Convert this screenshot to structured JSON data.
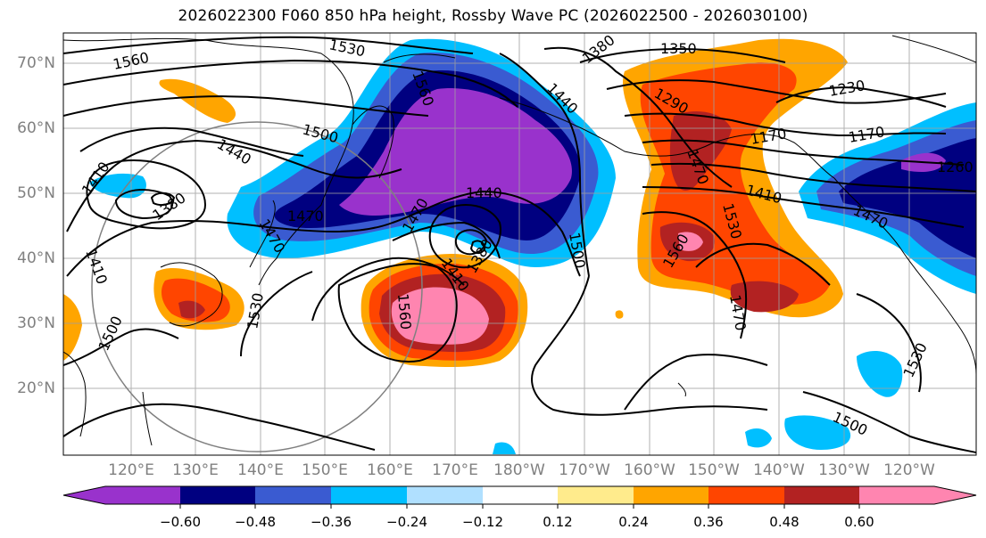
{
  "title": "2026022300 F060 850 hPa height, Rossby Wave PC (2026022500 - 2026030100)",
  "lat_labels": [
    "70°N",
    "60°N",
    "50°N",
    "40°N",
    "30°N",
    "20°N"
  ],
  "lon_labels": [
    "120°E",
    "130°E",
    "140°E",
    "150°E",
    "160°E",
    "170°E",
    "180°W",
    "170°W",
    "160°W",
    "150°W",
    "140°W",
    "130°W",
    "120°W"
  ],
  "colorbar": {
    "ticks": [
      "−0.60",
      "−0.48",
      "−0.36",
      "−0.24",
      "−0.12",
      "0.12",
      "0.24",
      "0.36",
      "0.48",
      "0.60"
    ],
    "colors": [
      "#9932cc",
      "#000080",
      "#3a5bd1",
      "#00bfff",
      "#b0e0ff",
      "#ffffff",
      "#ffeb8c",
      "#ffa500",
      "#ff4500",
      "#b22222",
      "#ff85b0"
    ]
  },
  "contour_labels": [
    "1530",
    "1560",
    "1380",
    "1350",
    "1230",
    "1560",
    "1440",
    "1290",
    "1500",
    "1170",
    "1170",
    "1440",
    "1410",
    "1470",
    "1410",
    "1380",
    "1470",
    "1440",
    "1470",
    "1380",
    "1410",
    "1410",
    "1530",
    "1260",
    "1470",
    "1500",
    "1470",
    "1560",
    "1470",
    "1560",
    "1530",
    "1500",
    "1530",
    "1500"
  ]
}
